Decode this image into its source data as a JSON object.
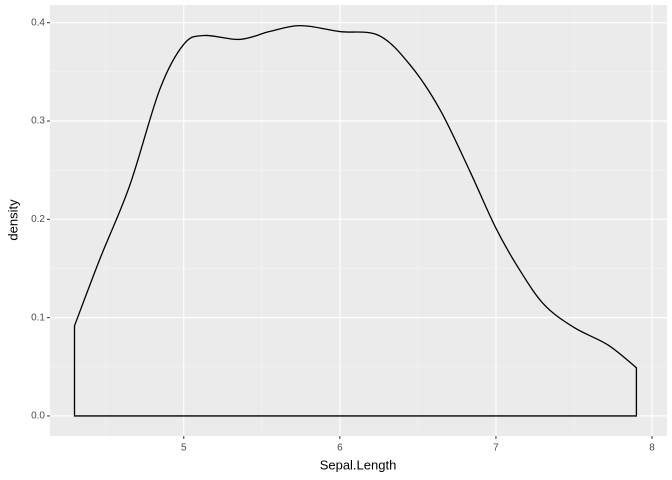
{
  "chart_data": {
    "type": "density",
    "x_label": "Sepal.Length",
    "y_label": "density",
    "x": [
      4.3,
      4.466,
      4.655,
      4.846,
      5.0,
      5.13,
      5.36,
      5.55,
      5.75,
      6.0,
      6.25,
      6.45,
      6.64,
      6.83,
      7.0,
      7.15,
      7.31,
      7.5,
      7.72,
      7.9
    ],
    "values": [
      0.0917,
      0.161,
      0.235,
      0.332,
      0.378,
      0.387,
      0.383,
      0.391,
      0.397,
      0.391,
      0.387,
      0.357,
      0.312,
      0.25,
      0.191,
      0.149,
      0.113,
      0.09,
      0.072,
      0.049
    ],
    "color": "#000000",
    "xlim": [
      4.143,
      8.096
    ],
    "ylim": [
      -0.0204,
      0.418
    ],
    "xticks": [
      5,
      6,
      7,
      8
    ],
    "yticks": [
      {
        "value": 0,
        "label": "0.0"
      },
      {
        "value": 0.1,
        "label": "0.1"
      },
      {
        "value": 0.2,
        "label": "0.2"
      },
      {
        "value": 0.3,
        "label": "0.3"
      },
      {
        "value": 0.4,
        "label": "0.4"
      }
    ],
    "grid": true
  }
}
